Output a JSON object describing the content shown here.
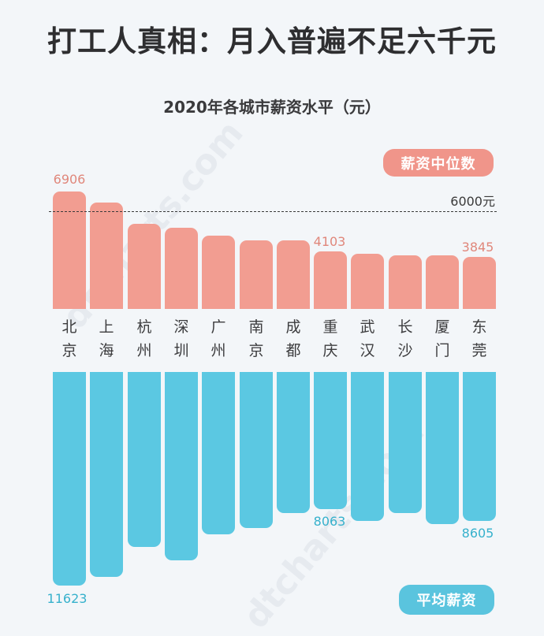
{
  "header": {
    "title": "打工人真相：月入普遍不足六千元",
    "subtitle": "2020年各城市薪资水平（元）"
  },
  "legend": {
    "median_label": "薪资中位数",
    "average_label": "平均薪资",
    "reference_label": "6000元"
  },
  "colors": {
    "median": "#f29d91",
    "average": "#5bc8e2",
    "median_text": "#e0877b",
    "average_text": "#36b1cc",
    "background": "#f3f6f9"
  },
  "labels": {
    "median_beijing": "6906",
    "median_chongqing": "4103",
    "median_dongguan": "3845",
    "average_beijing": "11623",
    "average_chongqing": "8063",
    "average_dongguan": "8605"
  },
  "cities": [
    {
      "line1": "北",
      "line2": "京"
    },
    {
      "line1": "上",
      "line2": "海"
    },
    {
      "line1": "杭",
      "line2": "州"
    },
    {
      "line1": "深",
      "line2": "圳"
    },
    {
      "line1": "广",
      "line2": "州"
    },
    {
      "line1": "南",
      "line2": "京"
    },
    {
      "line1": "成",
      "line2": "都"
    },
    {
      "line1": "重",
      "line2": "庆"
    },
    {
      "line1": "武",
      "line2": "汉"
    },
    {
      "line1": "长",
      "line2": "沙"
    },
    {
      "line1": "厦",
      "line2": "门"
    },
    {
      "line1": "东",
      "line2": "莞"
    }
  ],
  "chart_data": {
    "type": "bar",
    "title": "打工人真相：月入普遍不足六千元",
    "subtitle": "2020年各城市薪资水平（元）",
    "categories": [
      "北京",
      "上海",
      "杭州",
      "深圳",
      "广州",
      "南京",
      "成都",
      "重庆",
      "武汉",
      "长沙",
      "厦门",
      "东莞"
    ],
    "series": [
      {
        "name": "薪资中位数",
        "values": [
          6906,
          6390,
          5390,
          5210,
          4840,
          4620,
          4620,
          4103,
          3990,
          3920,
          3920,
          3845
        ],
        "direction": "up"
      },
      {
        "name": "平均薪资",
        "values": [
          11623,
          11220,
          9820,
          10450,
          9240,
          8940,
          8250,
          8063,
          8610,
          8250,
          8760,
          8605
        ],
        "direction": "down"
      }
    ],
    "annotations": [
      {
        "type": "reference_line",
        "series": "薪资中位数",
        "value": 6000,
        "label": "6000元",
        "style": "dashed"
      }
    ],
    "data_labels_shown": {
      "薪资中位数": {
        "北京": 6906,
        "重庆": 4103,
        "东莞": 3845
      },
      "平均薪资": {
        "北京": 11623,
        "重庆": 8063,
        "东莞": 8605
      }
    },
    "xlabel": "",
    "ylabel": "元",
    "grid": false,
    "legend_position": "right (top pill for median, bottom pill for average)"
  }
}
